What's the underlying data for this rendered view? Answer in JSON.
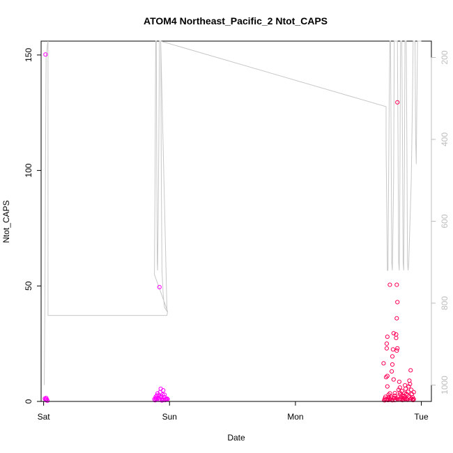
{
  "chart_data": {
    "type": "scatter",
    "title": "ATOM4 Northeast_Pacific_2 Ntot_CAPS",
    "xlabel": "Date",
    "ylabel": "Ntot_CAPS",
    "x_unit": "days since Sat 00:00",
    "xlim": [
      -0.02,
      3.08
    ],
    "ylim": [
      0,
      156
    ],
    "x_ticks": [
      {
        "value": 0,
        "label": "Sat"
      },
      {
        "value": 1,
        "label": "Sun"
      },
      {
        "value": 2,
        "label": "Mon"
      },
      {
        "value": 3,
        "label": "Tue"
      }
    ],
    "y_ticks": [
      0,
      50,
      100,
      150
    ],
    "y2_ticks": [
      200,
      400,
      600,
      800,
      1000
    ],
    "y2_range": [
      1040,
      160
    ],
    "colors": {
      "axis": "#000000",
      "depth_line": "#c8c8c8",
      "right_axis": "#bdbdbd",
      "point_scale": [
        "#ff00ff",
        "#ff0055"
      ]
    },
    "depth_line": [
      [
        0.005,
        1000
      ],
      [
        0.01,
        800
      ],
      [
        0.015,
        450
      ],
      [
        0.02,
        200
      ],
      [
        0.03,
        170
      ],
      [
        0.035,
        160
      ],
      [
        0.035,
        830
      ],
      [
        0.98,
        830
      ],
      [
        0.985,
        820
      ],
      [
        0.88,
        730
      ],
      [
        0.885,
        500
      ],
      [
        0.888,
        300
      ],
      [
        0.89,
        160
      ],
      [
        0.895,
        160
      ],
      [
        0.898,
        400
      ],
      [
        0.902,
        700
      ],
      [
        0.905,
        720
      ],
      [
        0.91,
        600
      ],
      [
        0.915,
        400
      ],
      [
        0.92,
        160
      ],
      [
        0.93,
        160
      ],
      [
        0.935,
        500
      ],
      [
        0.94,
        720
      ],
      [
        0.95,
        780
      ],
      [
        0.96,
        810
      ],
      [
        0.97,
        815
      ],
      [
        0.98,
        820
      ],
      [
        0.93,
        160
      ],
      [
        2.72,
        320
      ],
      [
        2.72,
        420
      ],
      [
        2.725,
        560
      ],
      [
        2.73,
        720
      ],
      [
        2.735,
        720
      ],
      [
        2.74,
        500
      ],
      [
        2.745,
        300
      ],
      [
        2.75,
        160
      ],
      [
        2.755,
        160
      ],
      [
        2.76,
        400
      ],
      [
        2.765,
        700
      ],
      [
        2.77,
        720
      ],
      [
        2.78,
        500
      ],
      [
        2.785,
        160
      ],
      [
        2.79,
        160
      ],
      [
        2.81,
        160
      ],
      [
        2.815,
        400
      ],
      [
        2.82,
        700
      ],
      [
        2.825,
        720
      ],
      [
        2.83,
        500
      ],
      [
        2.835,
        160
      ],
      [
        2.845,
        160
      ],
      [
        2.85,
        400
      ],
      [
        2.855,
        700
      ],
      [
        2.86,
        720
      ],
      [
        2.865,
        500
      ],
      [
        2.87,
        160
      ],
      [
        2.88,
        160
      ],
      [
        2.885,
        400
      ],
      [
        2.89,
        700
      ],
      [
        2.895,
        720
      ],
      [
        2.9,
        700
      ],
      [
        2.91,
        600
      ],
      [
        2.92,
        500
      ],
      [
        2.925,
        400
      ],
      [
        2.93,
        300
      ],
      [
        2.935,
        160
      ],
      [
        2.95,
        160
      ],
      [
        2.955,
        400
      ],
      [
        2.96,
        460
      ],
      [
        2.965,
        300
      ],
      [
        2.97,
        160
      ],
      [
        3.0,
        160
      ]
    ],
    "points": [
      [
        0.01,
        1.2
      ],
      [
        0.015,
        0.8
      ],
      [
        0.02,
        0.6
      ],
      [
        0.025,
        0.9
      ],
      [
        0.03,
        0.3
      ],
      [
        0.02,
        1.5
      ],
      [
        0.015,
        150.2
      ],
      [
        0.88,
        1.0
      ],
      [
        0.885,
        0.5
      ],
      [
        0.89,
        2.0
      ],
      [
        0.895,
        1.2
      ],
      [
        0.9,
        0.8
      ],
      [
        0.905,
        3.5
      ],
      [
        0.91,
        1.5
      ],
      [
        0.915,
        2.5
      ],
      [
        0.92,
        0.9
      ],
      [
        0.925,
        4.0
      ],
      [
        0.93,
        5.5
      ],
      [
        0.935,
        2.2
      ],
      [
        0.94,
        1.1
      ],
      [
        0.945,
        3.0
      ],
      [
        0.95,
        4.8
      ],
      [
        0.955,
        0.7
      ],
      [
        0.96,
        1.8
      ],
      [
        0.965,
        0.6
      ],
      [
        0.97,
        1.0
      ],
      [
        0.975,
        0.8
      ],
      [
        0.98,
        1.2
      ],
      [
        0.985,
        0.9
      ],
      [
        0.92,
        49.5
      ],
      [
        0.89,
        1.4
      ],
      [
        0.9,
        2.6
      ],
      [
        0.93,
        1.9
      ],
      [
        0.94,
        0.4
      ],
      [
        0.96,
        2.9
      ],
      [
        2.7,
        16.5
      ],
      [
        2.705,
        0.5
      ],
      [
        2.71,
        1.2
      ],
      [
        2.715,
        2.0
      ],
      [
        2.72,
        0.8
      ],
      [
        2.72,
        10.5
      ],
      [
        2.725,
        23.0
      ],
      [
        2.725,
        25.0
      ],
      [
        2.73,
        28.0
      ],
      [
        2.73,
        6.5
      ],
      [
        2.73,
        11.0
      ],
      [
        2.735,
        0.6
      ],
      [
        2.74,
        1.8
      ],
      [
        2.745,
        1.2
      ],
      [
        2.75,
        3.5
      ],
      [
        2.75,
        50.5
      ],
      [
        2.755,
        0.9
      ],
      [
        2.76,
        2.2
      ],
      [
        2.765,
        13.0
      ],
      [
        2.77,
        16.0
      ],
      [
        2.77,
        19.5
      ],
      [
        2.775,
        22.5
      ],
      [
        2.78,
        29.5
      ],
      [
        2.78,
        9.5
      ],
      [
        2.785,
        1.5
      ],
      [
        2.79,
        2.5
      ],
      [
        2.795,
        0.7
      ],
      [
        2.8,
        29.0
      ],
      [
        2.8,
        27.5
      ],
      [
        2.805,
        36.0
      ],
      [
        2.805,
        22.0
      ],
      [
        2.81,
        23.0
      ],
      [
        2.81,
        43.0
      ],
      [
        2.805,
        50.5
      ],
      [
        2.81,
        129.5
      ],
      [
        2.815,
        2.0
      ],
      [
        2.82,
        5.0
      ],
      [
        2.825,
        8.5
      ],
      [
        2.83,
        6.0
      ],
      [
        2.835,
        3.0
      ],
      [
        2.84,
        1.0
      ],
      [
        2.845,
        4.5
      ],
      [
        2.85,
        2.5
      ],
      [
        2.855,
        0.8
      ],
      [
        2.86,
        1.5
      ],
      [
        2.865,
        3.5
      ],
      [
        2.87,
        7.0
      ],
      [
        2.875,
        5.5
      ],
      [
        2.88,
        1.2
      ],
      [
        2.885,
        0.9
      ],
      [
        2.89,
        2.8
      ],
      [
        2.895,
        4.2
      ],
      [
        2.9,
        6.5
      ],
      [
        2.905,
        9.0
      ],
      [
        2.91,
        7.5
      ],
      [
        2.915,
        13.5
      ],
      [
        2.92,
        5.0
      ],
      [
        2.925,
        3.2
      ],
      [
        2.93,
        1.8
      ],
      [
        2.935,
        0.6
      ],
      [
        2.94,
        4.0
      ],
      [
        2.94,
        1.0
      ],
      [
        2.93,
        0.9
      ],
      [
        2.91,
        0.8
      ],
      [
        2.89,
        0.7
      ],
      [
        2.87,
        0.9
      ],
      [
        2.85,
        0.6
      ],
      [
        2.83,
        0.8
      ],
      [
        2.81,
        1.1
      ],
      [
        2.79,
        0.6
      ],
      [
        2.77,
        0.5
      ],
      [
        2.75,
        0.7
      ],
      [
        2.73,
        0.9
      ],
      [
        2.71,
        0.5
      ],
      [
        2.83,
        3.8
      ],
      [
        2.86,
        2.4
      ],
      [
        2.88,
        3.3
      ],
      [
        2.76,
        1.6
      ],
      [
        2.8,
        1.4
      ],
      [
        2.84,
        1.9
      ],
      [
        2.9,
        2.1
      ],
      [
        2.92,
        1.3
      ],
      [
        2.79,
        3.6
      ],
      [
        2.74,
        2.9
      ]
    ]
  }
}
